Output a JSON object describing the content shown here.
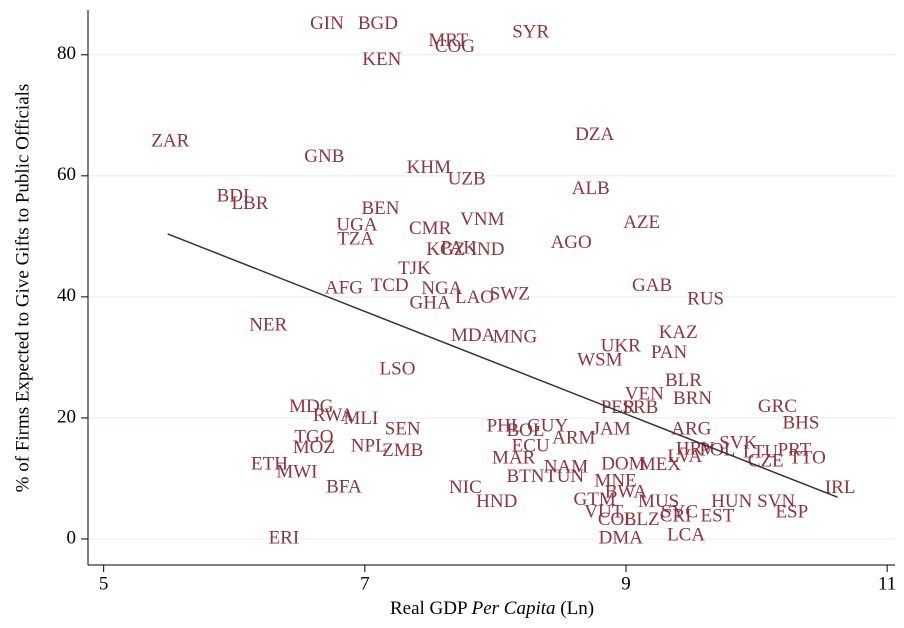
{
  "chart_data": {
    "type": "scatter",
    "xlabel": [
      "Real GDP",
      "Per Capita",
      "(Ln)"
    ],
    "ylabel": "% of Firms Expected to Give Gifts to Public Officials",
    "xlim": [
      4.88,
      11.06
    ],
    "ylim": [
      -4.3,
      87.4
    ],
    "xticks": [
      5,
      7,
      9,
      11
    ],
    "yticks": [
      0,
      20,
      40,
      60,
      80
    ],
    "grid": true,
    "color": "#8f3340",
    "line_color": "#333333",
    "labels": [
      "GIN",
      "BGD",
      "MRT",
      "COG",
      "SYR",
      "KEN",
      "ZAR",
      "DZA",
      "GNB",
      "KHM",
      "UZB",
      "ALB",
      "BDI",
      "LBR",
      "BEN",
      "AZE",
      "UGA",
      "VNM",
      "CMR",
      "TZA",
      "AGO",
      "PAK",
      "KGZ",
      "IND",
      "TJK",
      "AFG",
      "TCD",
      "NGA",
      "GAB",
      "SWZ",
      "LAO",
      "GHA",
      "RUS",
      "NER",
      "KAZ",
      "MDA",
      "MNG",
      "UKR",
      "PAN",
      "WSM",
      "LSO",
      "BLR",
      "VEN",
      "SRB",
      "PER",
      "BRN",
      "GRC",
      "BHS",
      "MDG",
      "RWA",
      "MLI",
      "SEN",
      "PHL",
      "BOL",
      "GUY",
      "ARM",
      "JAM",
      "ARG",
      "TGO",
      "NPL",
      "ZMB",
      "MOZ",
      "SVK",
      "POL",
      "HRV",
      "LTU",
      "PRT",
      "CZE",
      "TTO",
      "LVA",
      "ETH",
      "MWI",
      "MAR",
      "ECU",
      "NAM",
      "BTN",
      "TUN",
      "DOM",
      "MEX",
      "MNE",
      "BFA",
      "NIC",
      "HND",
      "GTM",
      "BWA",
      "MUS",
      "VUT",
      "SYC",
      "HUN",
      "EST",
      "SVN",
      "ESP",
      "IRL",
      "COL",
      "BLZ",
      "CRI",
      "LCA",
      "ERI",
      "DMA"
    ],
    "x": [
      6.71,
      7.1,
      7.64,
      7.69,
      8.27,
      7.13,
      5.51,
      8.76,
      6.69,
      7.49,
      7.78,
      8.73,
      5.99,
      6.12,
      7.12,
      9.12,
      6.94,
      7.9,
      7.5,
      6.93,
      8.58,
      7.72,
      7.62,
      7.94,
      7.38,
      6.84,
      7.19,
      7.59,
      9.2,
      8.11,
      7.84,
      7.5,
      9.61,
      6.26,
      9.4,
      7.83,
      8.15,
      8.96,
      9.33,
      8.8,
      7.25,
      9.44,
      9.14,
      9.11,
      8.94,
      9.51,
      10.16,
      10.34,
      6.59,
      6.76,
      6.97,
      7.29,
      8.07,
      8.23,
      8.4,
      8.6,
      8.89,
      9.5,
      6.61,
      7.03,
      7.29,
      6.61,
      9.86,
      9.7,
      9.53,
      10.03,
      10.29,
      10.07,
      10.39,
      9.45,
      6.27,
      6.48,
      8.14,
      8.27,
      8.54,
      8.23,
      8.53,
      8.98,
      9.26,
      8.92,
      6.84,
      7.77,
      8.01,
      8.76,
      9.0,
      9.25,
      8.83,
      9.41,
      9.81,
      9.7,
      10.15,
      10.27,
      10.64,
      8.93,
      9.12,
      9.38,
      9.46,
      6.38,
      8.96
    ],
    "y": [
      85,
      85,
      82.2,
      81.2,
      83.6,
      79,
      65.6,
      66.6,
      63,
      61.2,
      59.3,
      57.7,
      56.5,
      55.2,
      54.4,
      52.1,
      51.7,
      52.6,
      51.1,
      49.4,
      48.8,
      47.9,
      47.6,
      47.6,
      44.5,
      41.3,
      41.7,
      41.2,
      41.7,
      40.3,
      39.7,
      38.8,
      39.5,
      35.2,
      33.9,
      33.4,
      33.2,
      31.7,
      30.6,
      29.4,
      27.9,
      26.0,
      23.8,
      21.5,
      21.5,
      23.0,
      21.7,
      19.0,
      21.7,
      20.2,
      19.7,
      18.0,
      18.5,
      17.7,
      18.5,
      16.5,
      18.0,
      18.0,
      16.7,
      15.2,
      14.4,
      14.9,
      15.7,
      14.5,
      14.7,
      14.2,
      14.5,
      12.7,
      13.2,
      13.4,
      12.2,
      10.9,
      13.2,
      15.2,
      11.7,
      10.1,
      10.1,
      12.2,
      12.1,
      9.4,
      8.4,
      8.3,
      6.0,
      6.3,
      7.6,
      6.0,
      4.3,
      4.3,
      6.0,
      3.6,
      6.0,
      4.3,
      8.3,
      3.0,
      3.0,
      3.6,
      0.5,
      0,
      0
    ],
    "trendline": {
      "x": [
        5.49,
        10.62
      ],
      "y": [
        50.4,
        6.9
      ]
    }
  }
}
